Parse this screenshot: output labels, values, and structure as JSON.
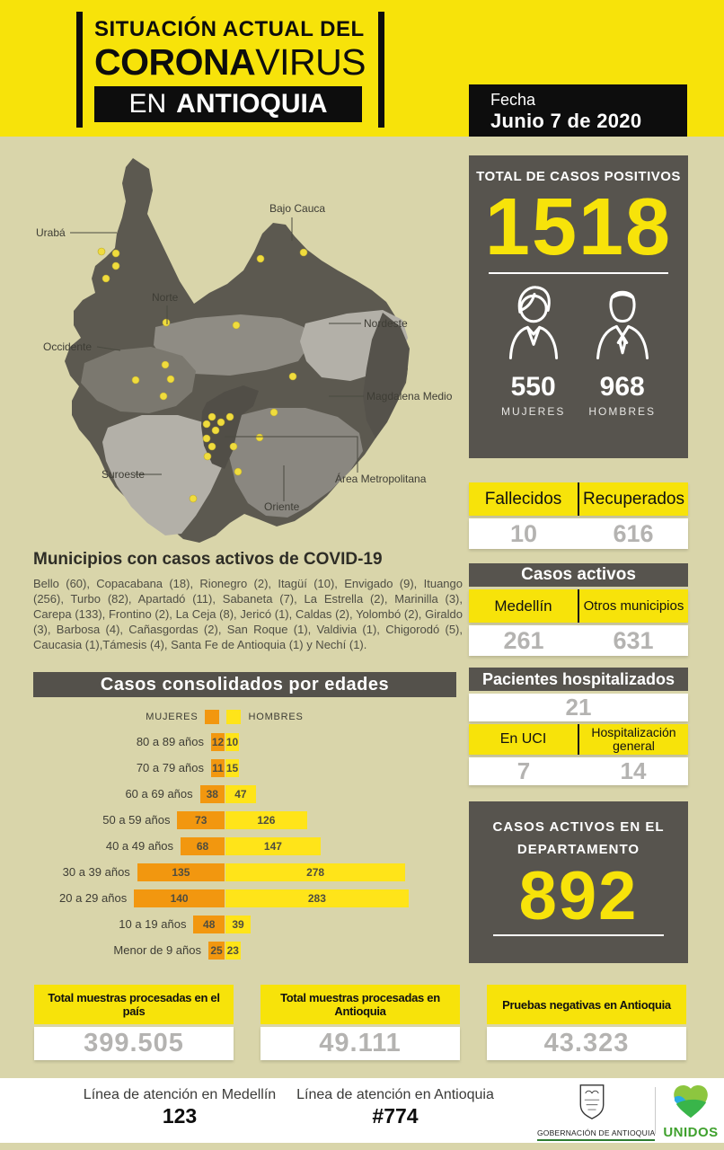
{
  "header": {
    "title_line1": "SITUACIÓN ACTUAL DEL",
    "title_line2_bold": "CORONA",
    "title_line2_regular": "VIRUS",
    "title_line3_light": "EN",
    "title_line3_bold": "ANTIOQUIA",
    "date_label": "Fecha",
    "date_value": "Junio 7 de 2020"
  },
  "map": {
    "labels": [
      "Urabá",
      "Bajo Cauca",
      "Norte",
      "Nordeste",
      "Occidente",
      "Magdalena Medio",
      "Suroeste",
      "Área Metropolitana",
      "Oriente"
    ]
  },
  "positivos": {
    "title": "TOTAL DE CASOS POSITIVOS",
    "value": "1518",
    "women": {
      "value": "550",
      "label": "MUJERES"
    },
    "men": {
      "value": "968",
      "label": "HOMBRES"
    }
  },
  "fallecidos_recuperados": {
    "col1_label": "Fallecidos",
    "col2_label": "Recuperados",
    "col1_value": "10",
    "col2_value": "616"
  },
  "casos_activos": {
    "title": "Casos activos",
    "col1_label": "Medellín",
    "col2_label": "Otros municipios",
    "col1_value": "261",
    "col2_value": "631"
  },
  "hospitalizados": {
    "title": "Pacientes hospitalizados",
    "total": "21",
    "col1_label": "En UCI",
    "col2_label": "Hospitalización general",
    "col1_value": "7",
    "col2_value": "14"
  },
  "departamento": {
    "title_line1": "CASOS ACTIVOS EN EL",
    "title_line2": "DEPARTAMENTO",
    "value": "892"
  },
  "municipios": {
    "heading": "Municipios con casos activos de COVID-19",
    "text": "Bello (60), Copacabana (18), Rionegro (2), Itagüí (10), Envigado (9), Ituango (256), Turbo (82), Apartadó (11), Sabaneta (7), La Estrella (2), Marinilla (3), Carepa (133), Frontino (2), La Ceja (8), Jericó (1), Caldas (2), Yolombó (2), Giraldo (3), Barbosa (4), Cañasgordas (2), San Roque (1), Valdivia (1), Chigorodó (5), Caucasia (1),Támesis (4), Santa Fe de Antioquia (1) y Nechí (1)."
  },
  "chart": {
    "title": "Casos consolidados por edades"
  },
  "chart_data": {
    "type": "bar",
    "variant": "population-pyramid-horizontal",
    "title": "Casos consolidados por edades",
    "categories": [
      "80 a 89 años",
      "70 a 79 años",
      "60 a 69 años",
      "50 a 59 años",
      "40 a 49 años",
      "30 a 39 años",
      "20 a 29 años",
      "10 a 19 años",
      "Menor de 9 años"
    ],
    "series": [
      {
        "name": "MUJERES",
        "color": "#F2970F",
        "values": [
          12,
          11,
          38,
          73,
          68,
          135,
          140,
          48,
          25
        ]
      },
      {
        "name": "HOMBRES",
        "color": "#FFE419",
        "values": [
          10,
          15,
          47,
          126,
          147,
          278,
          283,
          39,
          23
        ]
      }
    ],
    "legend_position": "top"
  },
  "bottom_stats": [
    {
      "label": "Total muestras procesadas en el país",
      "value": "399.505"
    },
    {
      "label": "Total muestras procesadas en Antioquia",
      "value": "49.111"
    },
    {
      "label": "Pruebas negativas en Antioquia",
      "value": "43.323"
    }
  ],
  "footer": {
    "medellin_label": "Línea de atención en Medellín",
    "medellin_value": "123",
    "antioquia_label": "Línea de atención en Antioquia",
    "antioquia_value": "#774",
    "gobernacion_label": "GOBERNACIÓN DE ANTIOQUIA",
    "unidos_label": "UNIDOS"
  },
  "colors": {
    "background": "#D9D5AA",
    "yellow": "#F7E30A",
    "panel_dark": "#57544E",
    "number_gray": "#B4B3B1",
    "orange": "#F2970F",
    "bar_yellow": "#FFE419",
    "black": "#0D0D0D",
    "white": "#FFFFFF",
    "unidos_green": "#3FA12D"
  }
}
